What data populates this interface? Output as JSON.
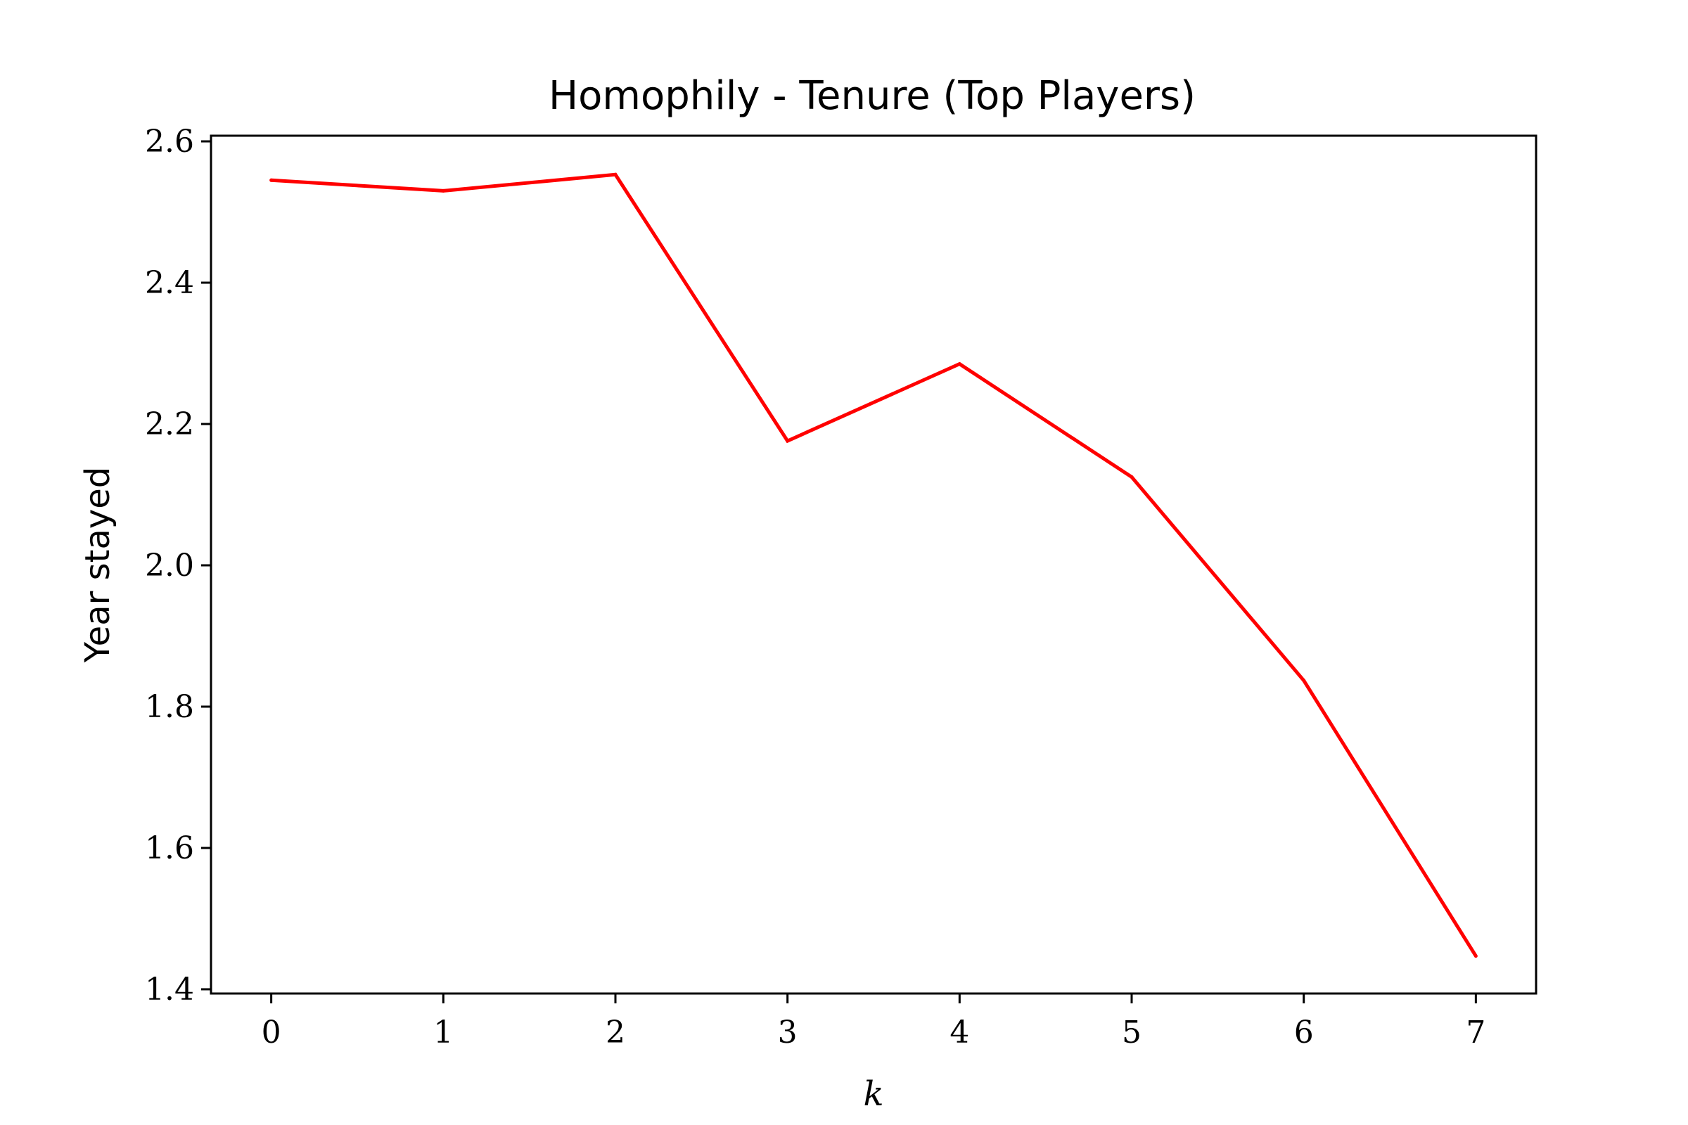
{
  "chart_data": {
    "type": "line",
    "title": "Homophily - Tenure (Top Players)",
    "xlabel": "k",
    "ylabel": "Year stayed",
    "x": [
      0,
      1,
      2,
      3,
      4,
      5,
      6,
      7
    ],
    "series": [
      {
        "values": [
          2.545,
          2.53,
          2.553,
          2.176,
          2.285,
          2.125,
          1.837,
          1.447
        ],
        "color": "#ff0000"
      }
    ],
    "xlim": [
      -0.35,
      7.35
    ],
    "ylim": [
      1.394,
      2.608
    ],
    "xticks": [
      "0",
      "1",
      "2",
      "3",
      "4",
      "5",
      "6",
      "7"
    ],
    "yticks": [
      "1.4",
      "1.6",
      "1.8",
      "2.0",
      "2.2",
      "2.4",
      "2.6"
    ],
    "grid": false,
    "legend": "none"
  }
}
